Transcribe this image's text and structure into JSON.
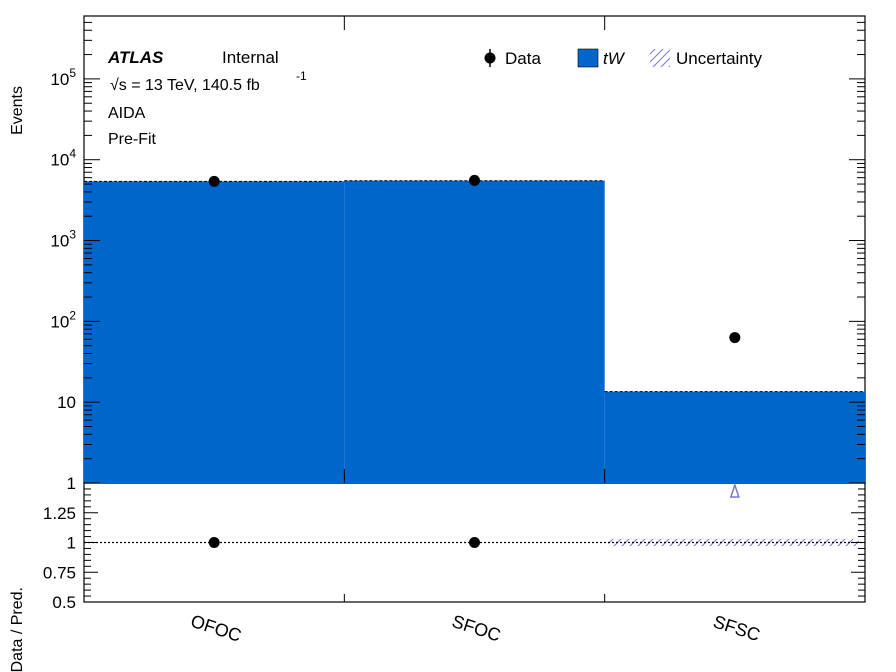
{
  "atlas_label": "ATLAS",
  "status_label": "Internal",
  "energy_label": "√s = 13 TeV, 140.5 fb",
  "energy_exponent": "-1",
  "analysis_label": "AIDA",
  "fit_label": "Pre-Fit",
  "colors": {
    "tw_fill": "#0066cc",
    "uncertainty_hatch": "#7777dd",
    "data_marker": "#000000"
  },
  "legend": {
    "data": "Data",
    "tw": "tW",
    "uncertainty": "Uncertainty"
  },
  "chart_data": [
    {
      "type": "bar",
      "panel": "main",
      "ylabel": "Events",
      "yscale": "log",
      "ylim": [
        1,
        600000
      ],
      "categories": [
        "OFOC",
        "SFOC",
        "SFSC"
      ],
      "series": [
        {
          "name": "tW",
          "values": [
            5400,
            5500,
            13.5
          ]
        },
        {
          "name": "Data",
          "values": [
            5400,
            5550,
            63
          ]
        }
      ],
      "ytick_labels": [
        "1",
        "10",
        "10^2",
        "10^3",
        "10^4",
        "10^5"
      ],
      "legend_position": "top-right"
    },
    {
      "type": "scatter",
      "panel": "ratio",
      "ylabel": "Data / Pred.",
      "ylim": [
        0.5,
        1.5
      ],
      "categories": [
        "OFOC",
        "SFOC",
        "SFSC"
      ],
      "ratio": [
        1.0,
        1.0,
        null
      ],
      "offscale_arrow": [
        false,
        false,
        true
      ],
      "uncertainty_band": [
        null,
        null,
        [
          0.97,
          1.03
        ]
      ],
      "reference_line": 1.0,
      "ytick_labels": [
        "0.5",
        "0.75",
        "1",
        "1.25"
      ]
    }
  ]
}
